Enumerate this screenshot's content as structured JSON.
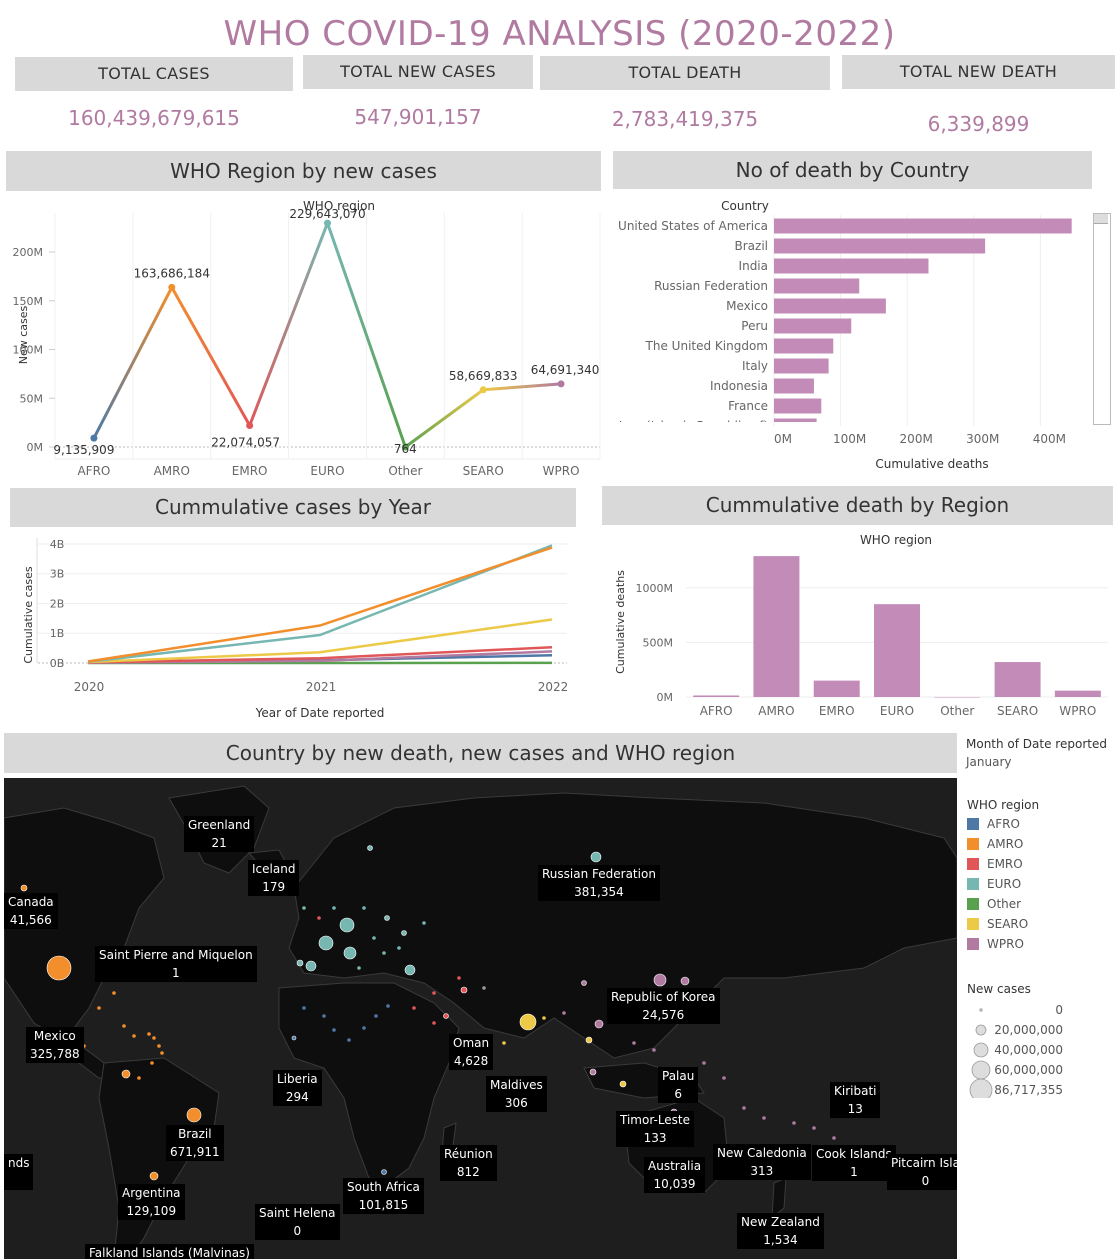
{
  "dashboard": {
    "title": "WHO COVID-19 ANALYSIS (2020-2022)"
  },
  "kpis": [
    {
      "label": "TOTAL CASES",
      "value": "160,439,679,615"
    },
    {
      "label": "TOTAL NEW CASES",
      "value": "547,901,157"
    },
    {
      "label": "TOTAL DEATH",
      "value": "2,783,419,375"
    },
    {
      "label": "TOTAL NEW DEATH",
      "value": "6,339,899"
    }
  ],
  "colors": {
    "AFRO": "#4e79a7",
    "AMRO": "#f28e2b",
    "EMRO": "#e15759",
    "EURO": "#76b7b2",
    "Other": "#59a14f",
    "SEARO": "#edc948",
    "WPRO": "#b07aa1",
    "bar": "#c38cb8"
  },
  "chart_data": [
    {
      "id": "region_new_cases",
      "type": "line",
      "title": "WHO Region by new cases",
      "header": "WHO region",
      "ylabel": "New cases",
      "categories": [
        "AFRO",
        "AMRO",
        "EMRO",
        "EURO",
        "Other",
        "SEARO",
        "WPRO"
      ],
      "values": [
        9135909,
        163686184,
        22074057,
        229643070,
        764,
        58669833,
        64691340
      ],
      "data_labels": [
        "9,135,909",
        "163,686,184",
        "22,074,057",
        "229,643,070",
        "764",
        "58,669,833",
        "64,691,340"
      ],
      "ylim": [
        0,
        240000000
      ],
      "yticks": [
        0,
        50000000,
        100000000,
        150000000,
        200000000
      ],
      "ytick_labels": [
        "0M",
        "50M",
        "100M",
        "150M",
        "200M"
      ]
    },
    {
      "id": "death_by_country",
      "type": "bar",
      "orientation": "horizontal",
      "title": "No of death by Country",
      "header": "Country",
      "xlabel": "Cumulative deaths",
      "categories": [
        "United States of America",
        "Brazil",
        "India",
        "Russian Federation",
        "Mexico",
        "Peru",
        "The United Kingdom",
        "Italy",
        "Indonesia",
        "France",
        "Iran (Islamic Republic of)"
      ],
      "values": [
        447000000,
        317000000,
        232000000,
        128000000,
        168000000,
        116000000,
        89000000,
        82000000,
        60000000,
        71000000,
        64000000
      ],
      "xlim": [
        0,
        470000000
      ],
      "xticks": [
        0,
        100000000,
        200000000,
        300000000,
        400000000
      ],
      "xtick_labels": [
        "0M",
        "100M",
        "200M",
        "300M",
        "400M"
      ]
    },
    {
      "id": "cumulative_by_year",
      "type": "line",
      "title": "Cummulative cases by Year",
      "xlabel": "Year of Date reported",
      "ylabel": "Cumulative cases",
      "x": [
        "2020",
        "2021",
        "2022"
      ],
      "ylim": [
        0,
        4200000000
      ],
      "yticks": [
        0,
        1000000000,
        2000000000,
        3000000000,
        4000000000
      ],
      "ytick_labels": [
        "0B",
        "1B",
        "2B",
        "3B",
        "4B"
      ],
      "series": [
        {
          "name": "AFRO",
          "values": [
            20000000,
            90000000,
            260000000
          ]
        },
        {
          "name": "AMRO",
          "values": [
            50000000,
            1260000000,
            3880000000
          ]
        },
        {
          "name": "EMRO",
          "values": [
            20000000,
            160000000,
            530000000
          ]
        },
        {
          "name": "EURO",
          "values": [
            40000000,
            940000000,
            3950000000
          ]
        },
        {
          "name": "Other",
          "values": [
            0,
            1000000,
            3000000
          ]
        },
        {
          "name": "SEARO",
          "values": [
            30000000,
            360000000,
            1460000000
          ]
        },
        {
          "name": "WPRO",
          "values": [
            10000000,
            70000000,
            390000000
          ]
        }
      ]
    },
    {
      "id": "death_by_region",
      "type": "bar",
      "title": "Cummulative death by Region",
      "header": "WHO region",
      "ylabel": "Cumulative deaths",
      "categories": [
        "AFRO",
        "AMRO",
        "EMRO",
        "EURO",
        "Other",
        "SEARO",
        "WPRO"
      ],
      "values": [
        14000000,
        1290000000,
        150000000,
        850000000,
        100000,
        320000000,
        58000000
      ],
      "ylim": [
        0,
        1300000000
      ],
      "yticks": [
        0,
        500000000,
        1000000000
      ],
      "ytick_labels": [
        "0M",
        "500M",
        "1000M"
      ]
    }
  ],
  "map": {
    "title": "Country by new death, new cases and WHO region",
    "labels": [
      {
        "name": "Greenland",
        "value": "21"
      },
      {
        "name": "Iceland",
        "value": "179"
      },
      {
        "name": "Russian Federation",
        "value": "381,354"
      },
      {
        "name": "Canada",
        "value": "41,566"
      },
      {
        "name": "Saint Pierre and Miquelon",
        "value": "1"
      },
      {
        "name": "Republic of Korea",
        "value": "24,576"
      },
      {
        "name": "Mexico",
        "value": "325,788"
      },
      {
        "name": "Oman",
        "value": "4,628"
      },
      {
        "name": "Liberia",
        "value": "294"
      },
      {
        "name": "Maldives",
        "value": "306"
      },
      {
        "name": "Palau",
        "value": "6"
      },
      {
        "name": "Kiribati",
        "value": "13"
      },
      {
        "name": "Timor-Leste",
        "value": "133"
      },
      {
        "name": "Brazil",
        "value": "671,911"
      },
      {
        "name": "Australia",
        "value": "10,039"
      },
      {
        "name": "New Caledonia",
        "value": "313"
      },
      {
        "name": "Cook Islands",
        "value": "1"
      },
      {
        "name": "Pitcairn Isla",
        "value": "0"
      },
      {
        "name": "nds",
        "value": ""
      },
      {
        "name": "Réunion",
        "value": "812"
      },
      {
        "name": "Argentina",
        "value": "129,109"
      },
      {
        "name": "South Africa",
        "value": "101,815"
      },
      {
        "name": "Saint Helena",
        "value": "0"
      },
      {
        "name": "New Zealand",
        "value": "1,534"
      },
      {
        "name": "Falkland Islands (Malvinas)",
        "value": ""
      }
    ]
  },
  "filter": {
    "title": "Month of Date reported",
    "value": "January"
  },
  "legend_region": {
    "title": "WHO region",
    "items": [
      "AFRO",
      "AMRO",
      "EMRO",
      "EURO",
      "Other",
      "SEARO",
      "WPRO"
    ]
  },
  "legend_size": {
    "title": "New cases",
    "items": [
      "0",
      "20,000,000",
      "40,000,000",
      "60,000,000",
      "86,717,355"
    ]
  }
}
